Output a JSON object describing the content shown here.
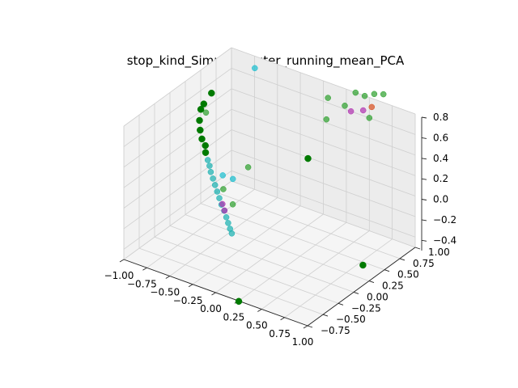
{
  "chart_data": {
    "type": "scatter3d",
    "title": "stop_kind_SimpleImputer_running_mean_PCA",
    "xlim": [
      -1.0,
      1.0
    ],
    "ylim": [
      -0.75,
      1.0
    ],
    "zlim": [
      -0.5,
      0.8
    ],
    "x_ticks": [
      "−1.00",
      "−0.75",
      "−0.50",
      "−0.25",
      "0.00",
      "0.25",
      "0.50",
      "0.75",
      "1.00"
    ],
    "y_ticks": [
      "−0.75",
      "−0.50",
      "−0.25",
      "0.00",
      "0.25",
      "0.50",
      "0.75",
      "1.00"
    ],
    "z_ticks": [
      "−0.4",
      "−0.2",
      "0.0",
      "0.2",
      "0.4",
      "0.6",
      "0.8"
    ],
    "grid": true,
    "colors": {
      "green": "#2ca02c",
      "dark_green": "#007a00",
      "teal": "#17b0b0",
      "cyan": "#17becf",
      "purple": "#b030b0",
      "orange": "#d94f1e"
    },
    "points": [
      {
        "x": -0.78,
        "y": 1.05,
        "z": 0.65,
        "c": "cyan"
      },
      {
        "x": -1.05,
        "y": 0.75,
        "z": 0.45,
        "c": "dark_green"
      },
      {
        "x": -1.1,
        "y": 0.7,
        "z": 0.35,
        "c": "dark_green"
      },
      {
        "x": -1.05,
        "y": 0.66,
        "z": 0.3,
        "c": "green"
      },
      {
        "x": -1.12,
        "y": 0.68,
        "z": 0.3,
        "c": "dark_green"
      },
      {
        "x": -1.08,
        "y": 0.6,
        "z": 0.24,
        "c": "dark_green"
      },
      {
        "x": -1.04,
        "y": 0.55,
        "z": 0.18,
        "c": "dark_green"
      },
      {
        "x": -1.0,
        "y": 0.52,
        "z": 0.12,
        "c": "dark_green"
      },
      {
        "x": -0.95,
        "y": 0.5,
        "z": 0.08,
        "c": "dark_green"
      },
      {
        "x": -0.92,
        "y": 0.46,
        "z": 0.04,
        "c": "dark_green"
      },
      {
        "x": -0.87,
        "y": 0.42,
        "z": 0.0,
        "c": "teal"
      },
      {
        "x": -0.83,
        "y": 0.39,
        "z": -0.03,
        "c": "teal"
      },
      {
        "x": -0.79,
        "y": 0.35,
        "z": -0.06,
        "c": "teal"
      },
      {
        "x": -0.74,
        "y": 0.31,
        "z": -0.09,
        "c": "teal"
      },
      {
        "x": -0.69,
        "y": 0.27,
        "z": -0.12,
        "c": "teal"
      },
      {
        "x": -0.64,
        "y": 0.23,
        "z": -0.15,
        "c": "teal"
      },
      {
        "x": -0.59,
        "y": 0.19,
        "z": -0.18,
        "c": "teal"
      },
      {
        "x": -0.54,
        "y": 0.15,
        "z": -0.21,
        "c": "teal"
      },
      {
        "x": -0.49,
        "y": 0.12,
        "z": -0.24,
        "c": "teal"
      },
      {
        "x": -0.44,
        "y": 0.08,
        "z": -0.27,
        "c": "teal"
      },
      {
        "x": -0.4,
        "y": 0.05,
        "z": -0.3,
        "c": "teal"
      },
      {
        "x": -0.36,
        "y": 0.02,
        "z": -0.33,
        "c": "teal"
      },
      {
        "x": -0.32,
        "y": -0.01,
        "z": -0.35,
        "c": "teal"
      },
      {
        "x": -0.55,
        "y": 0.18,
        "z": -0.22,
        "c": "purple"
      },
      {
        "x": -0.5,
        "y": 0.14,
        "z": -0.25,
        "c": "purple"
      },
      {
        "x": -0.66,
        "y": 0.35,
        "z": -0.05,
        "c": "cyan"
      },
      {
        "x": -0.55,
        "y": 0.35,
        "z": -0.05,
        "c": "cyan"
      },
      {
        "x": -0.62,
        "y": 0.3,
        "z": -0.15,
        "c": "green"
      },
      {
        "x": -0.45,
        "y": 0.2,
        "z": -0.2,
        "c": "green"
      },
      {
        "x": -0.35,
        "y": 0.3,
        "z": 0.15,
        "c": "green"
      },
      {
        "x": 0.05,
        "y": 1.0,
        "z": 0.65,
        "c": "green"
      },
      {
        "x": 0.2,
        "y": 1.05,
        "z": 0.6,
        "c": "green"
      },
      {
        "x": 0.35,
        "y": 1.15,
        "z": 0.7,
        "c": "green"
      },
      {
        "x": 0.42,
        "y": 1.2,
        "z": 0.72,
        "c": "green"
      },
      {
        "x": 0.46,
        "y": 1.1,
        "z": 0.65,
        "c": "orange"
      },
      {
        "x": 0.4,
        "y": 1.05,
        "z": 0.62,
        "c": "purple"
      },
      {
        "x": 0.3,
        "y": 1.0,
        "z": 0.6,
        "c": "purple"
      },
      {
        "x": 0.5,
        "y": 1.0,
        "z": 0.6,
        "c": "green"
      },
      {
        "x": 0.52,
        "y": 1.2,
        "z": 0.75,
        "c": "green"
      },
      {
        "x": 0.25,
        "y": 1.15,
        "z": 0.7,
        "c": "green"
      },
      {
        "x": 0.1,
        "y": 0.9,
        "z": 0.5,
        "c": "green"
      },
      {
        "x": 0.1,
        "y": 0.6,
        "z": 0.25,
        "c": "dark_green"
      },
      {
        "x": 0.9,
        "y": 0.3,
        "z": -0.4,
        "c": "dark_green"
      },
      {
        "x": 0.05,
        "y": -0.45,
        "z": -0.7,
        "c": "dark_green"
      }
    ]
  }
}
